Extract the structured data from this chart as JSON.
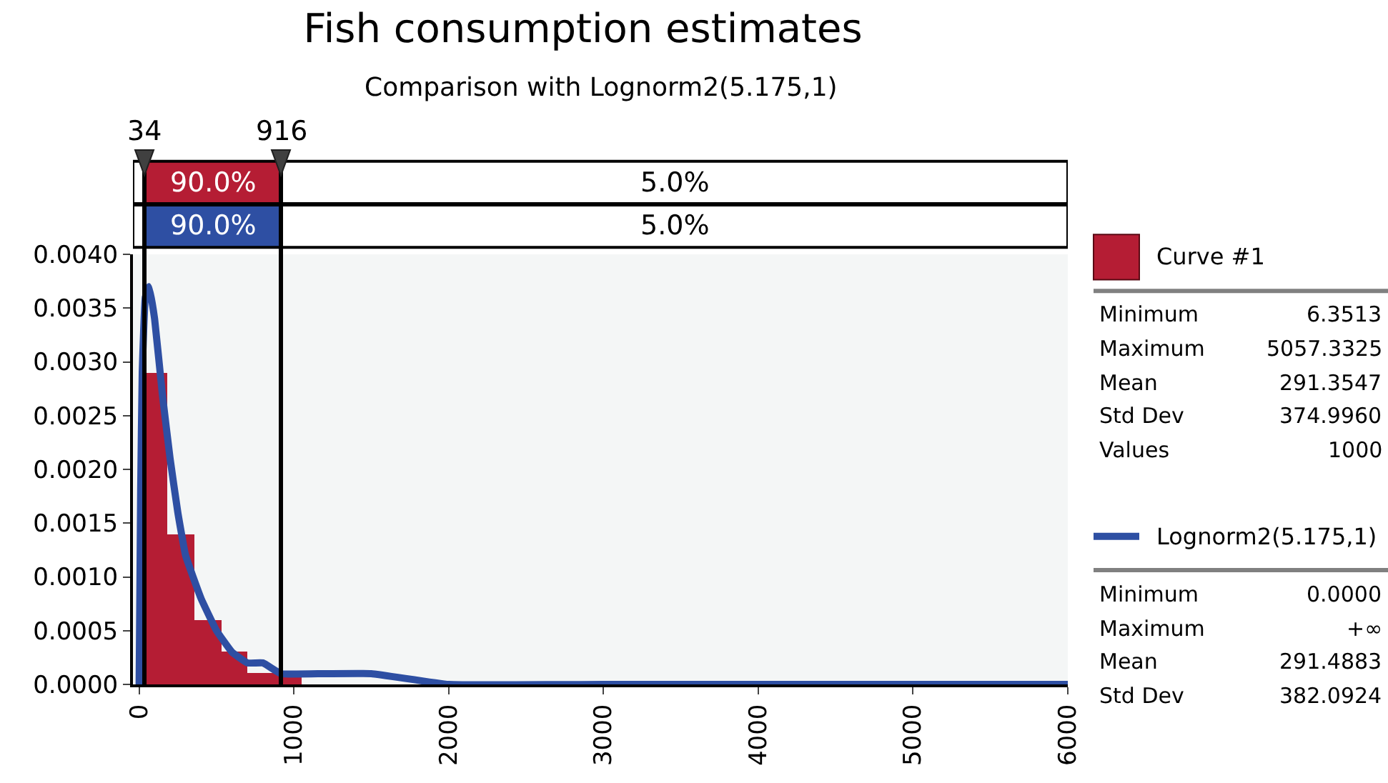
{
  "chart_data": {
    "type": "histogram",
    "title": "Fish consumption estimates",
    "subtitle": "Comparison with Lognorm2(5.175,1)",
    "bins": [
      6,
      180,
      355,
      529,
      703,
      877,
      1052,
      1226,
      1400,
      1574,
      1749,
      1923,
      2097,
      2271,
      2446,
      2620,
      2794,
      2968,
      3143,
      3317,
      3491,
      3665,
      3840,
      4014,
      4188,
      4362,
      4537,
      4711,
      4885,
      5059
    ],
    "series": [
      {
        "name": "Curve #1",
        "color": "#b51d34",
        "values": [
          0.0029,
          0.0014,
          0.0006,
          0.0003,
          0.0001,
          0.0001,
          0,
          0,
          0,
          0,
          0,
          0,
          0,
          0,
          0,
          0,
          0,
          0,
          0,
          0,
          0,
          0,
          0,
          0,
          0,
          0,
          0,
          0,
          0
        ]
      },
      {
        "name": "Lognorm2(5.175,1)",
        "type": "line",
        "color": "#2e4fa3",
        "x": [
          0,
          10,
          20,
          40,
          65,
          100,
          150,
          200,
          250,
          300,
          400,
          500,
          600,
          700,
          800,
          916,
          1200,
          1500,
          2000,
          3000,
          4000,
          6000
        ],
        "values": [
          0,
          0.0018,
          0.0029,
          0.0036,
          0.0037,
          0.0034,
          0.0027,
          0.0021,
          0.0016,
          0.0012,
          0.0008,
          0.0005,
          0.0003,
          0.0002,
          0.0002,
          0.0001,
          0.0001,
          0.0001,
          0,
          0,
          0,
          0
        ]
      }
    ],
    "xlim": [
      -40,
      6000
    ],
    "xticks": [
      0,
      1000,
      2000,
      3000,
      4000,
      5000,
      6000
    ],
    "ylim": [
      0,
      0.004
    ],
    "yticks": [
      {
        "value": 0,
        "label": "0.0000"
      },
      {
        "value": 0.0005,
        "label": "0.0005"
      },
      {
        "value": 0.001,
        "label": "0.0010"
      },
      {
        "value": 0.0015,
        "label": "0.0015"
      },
      {
        "value": 0.002,
        "label": "0.0020"
      },
      {
        "value": 0.0025,
        "label": "0.0025"
      },
      {
        "value": 0.003,
        "label": "0.0030"
      },
      {
        "value": 0.0035,
        "label": "0.0035"
      },
      {
        "value": 0.004,
        "label": "0.0040"
      }
    ],
    "ref_lines": [
      {
        "axis": "x",
        "value": 34,
        "label": "34"
      },
      {
        "axis": "x",
        "value": 916,
        "label": "916"
      }
    ],
    "annotations": [
      "90.0%",
      "5.0%",
      "90.0%",
      "5.0%",
      "Minimum 6.3513",
      "Maximum 5057.3325",
      "Mean 291.3547",
      "Std Dev 374.9960",
      "Values 1000",
      "Minimum 0.0000",
      "Maximum +∞",
      "Mean 291.4883",
      "Std Dev 382.0924"
    ],
    "legend": "right",
    "grid": false
  }
}
